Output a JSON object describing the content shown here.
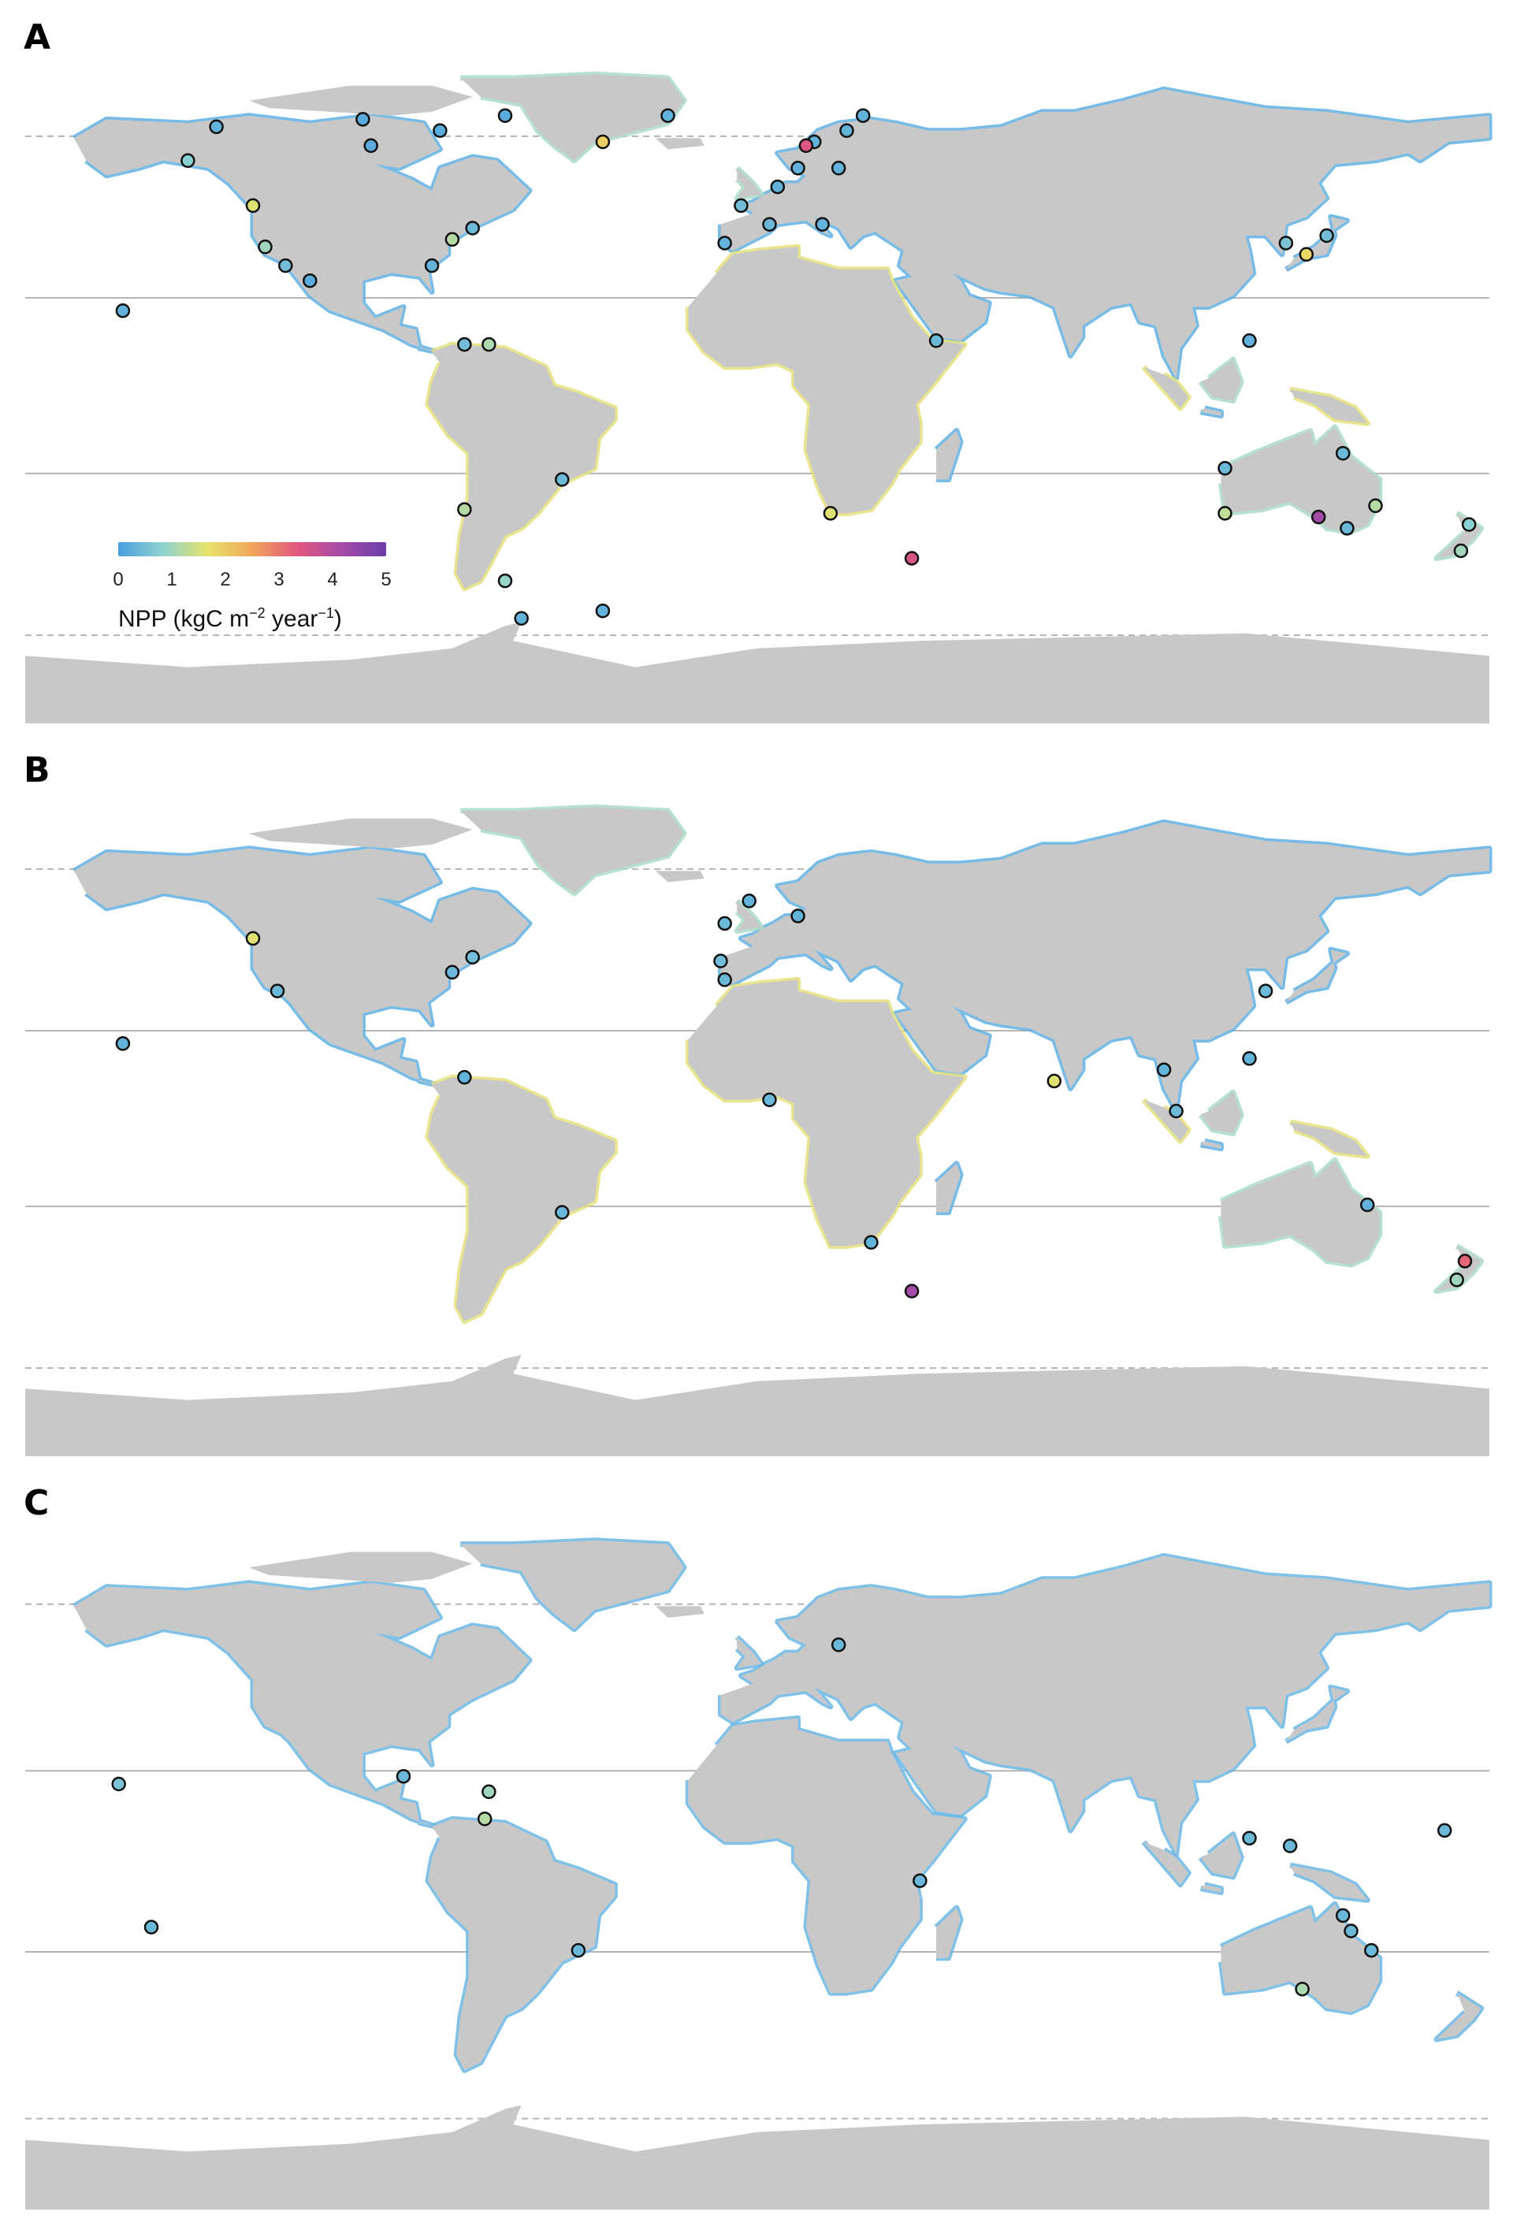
{
  "colors": {
    "land": "#c8c8c8",
    "ocean": "#ffffff",
    "gridline": "#b4b4b4",
    "point_stroke": "#111111",
    "npp_scale": [
      "#4a9fe0",
      "#8fd3d0",
      "#e6e36a",
      "#f1a65b",
      "#e2577e",
      "#a64aa8",
      "#6a3ea8"
    ]
  },
  "legend": {
    "ticks": [
      "0",
      "1",
      "2",
      "3",
      "4",
      "5"
    ],
    "label_prefix": "NPP (kgC m",
    "label_exp1": "−2",
    "label_mid": " year",
    "label_exp2": "−1",
    "label_suffix": ")",
    "range": [
      0,
      5
    ]
  },
  "panels": [
    {
      "letter": "A",
      "sites": [
        {
          "lon": -133,
          "lat": 69,
          "npp": 0.3
        },
        {
          "lon": -140,
          "lat": 60,
          "npp": 0.8
        },
        {
          "lon": -124,
          "lat": 48,
          "npp": 1.6
        },
        {
          "lon": -121,
          "lat": 37,
          "npp": 1.0
        },
        {
          "lon": -116,
          "lat": 32,
          "npp": 0.5
        },
        {
          "lon": -110,
          "lat": 28,
          "npp": 0.2
        },
        {
          "lon": -156,
          "lat": 20,
          "npp": 0.3
        },
        {
          "lon": -97,
          "lat": 71,
          "npp": 0.2
        },
        {
          "lon": -95,
          "lat": 64,
          "npp": 0.2
        },
        {
          "lon": -78,
          "lat": 68,
          "npp": 0.2
        },
        {
          "lon": -62,
          "lat": 72,
          "npp": 0.2
        },
        {
          "lon": -38,
          "lat": 65,
          "npp": 2.0
        },
        {
          "lon": -22,
          "lat": 72,
          "npp": 0.3
        },
        {
          "lon": -70,
          "lat": 42,
          "npp": 0.4
        },
        {
          "lon": -75,
          "lat": 39,
          "npp": 1.2
        },
        {
          "lon": -80,
          "lat": 32,
          "npp": 0.3
        },
        {
          "lon": -72,
          "lat": 11,
          "npp": 0.5
        },
        {
          "lon": -66,
          "lat": 11,
          "npp": 1.1
        },
        {
          "lon": -48,
          "lat": -25,
          "npp": 0.4
        },
        {
          "lon": -72,
          "lat": -33,
          "npp": 1.2
        },
        {
          "lon": -62,
          "lat": -52,
          "npp": 0.9
        },
        {
          "lon": -58,
          "lat": -62,
          "npp": 0.3
        },
        {
          "lon": -38,
          "lat": -60,
          "npp": 0.3
        },
        {
          "lon": 18,
          "lat": -34,
          "npp": 1.6
        },
        {
          "lon": 38,
          "lat": -46,
          "npp": 3.5
        },
        {
          "lon": 44,
          "lat": 12,
          "npp": 0.4
        },
        {
          "lon": 10,
          "lat": 58,
          "npp": 0.3
        },
        {
          "lon": 5,
          "lat": 53,
          "npp": 0.3
        },
        {
          "lon": -4,
          "lat": 48,
          "npp": 0.5
        },
        {
          "lon": 3,
          "lat": 43,
          "npp": 0.4
        },
        {
          "lon": -8,
          "lat": 38,
          "npp": 0.3
        },
        {
          "lon": 14,
          "lat": 65,
          "npp": 0.3
        },
        {
          "lon": 22,
          "lat": 68,
          "npp": 0.3
        },
        {
          "lon": 12,
          "lat": 64,
          "npp": 3.4
        },
        {
          "lon": 20,
          "lat": 58,
          "npp": 0.3
        },
        {
          "lon": 26,
          "lat": 72,
          "npp": 0.3
        },
        {
          "lon": 16,
          "lat": 43,
          "npp": 0.3
        },
        {
          "lon": 130,
          "lat": 38,
          "npp": 0.6
        },
        {
          "lon": 135,
          "lat": 35,
          "npp": 1.8
        },
        {
          "lon": 140,
          "lat": 40,
          "npp": 0.5
        },
        {
          "lon": 121,
          "lat": 12,
          "npp": 0.3
        },
        {
          "lon": 115,
          "lat": -22,
          "npp": 0.4
        },
        {
          "lon": 115,
          "lat": -34,
          "npp": 1.3
        },
        {
          "lon": 145,
          "lat": -38,
          "npp": 0.4
        },
        {
          "lon": 152,
          "lat": -32,
          "npp": 1.2
        },
        {
          "lon": 144,
          "lat": -18,
          "npp": 0.4
        },
        {
          "lon": 138,
          "lat": -35,
          "npp": 4.2
        },
        {
          "lon": 175,
          "lat": -37,
          "npp": 0.8
        },
        {
          "lon": 173,
          "lat": -44,
          "npp": 1.0
        }
      ]
    },
    {
      "letter": "B",
      "sites": [
        {
          "lon": -124,
          "lat": 48,
          "npp": 1.6
        },
        {
          "lon": -118,
          "lat": 34,
          "npp": 0.4
        },
        {
          "lon": -156,
          "lat": 20,
          "npp": 0.3
        },
        {
          "lon": -75,
          "lat": 39,
          "npp": 0.4
        },
        {
          "lon": -70,
          "lat": 43,
          "npp": 0.5
        },
        {
          "lon": -72,
          "lat": 11,
          "npp": 0.3
        },
        {
          "lon": -48,
          "lat": -25,
          "npp": 0.4
        },
        {
          "lon": -8,
          "lat": 52,
          "npp": 0.4
        },
        {
          "lon": -2,
          "lat": 58,
          "npp": 0.3
        },
        {
          "lon": -9,
          "lat": 42,
          "npp": 0.5
        },
        {
          "lon": -8,
          "lat": 37,
          "npp": 0.4
        },
        {
          "lon": 10,
          "lat": 54,
          "npp": 0.3
        },
        {
          "lon": 3,
          "lat": 5,
          "npp": 0.4
        },
        {
          "lon": 28,
          "lat": -33,
          "npp": 0.3
        },
        {
          "lon": 38,
          "lat": -46,
          "npp": 4.2
        },
        {
          "lon": 73,
          "lat": 10,
          "npp": 1.6
        },
        {
          "lon": 100,
          "lat": 13,
          "npp": 0.3
        },
        {
          "lon": 103,
          "lat": 2,
          "npp": 0.4
        },
        {
          "lon": 121,
          "lat": 16,
          "npp": 0.3
        },
        {
          "lon": 125,
          "lat": 34,
          "npp": 0.4
        },
        {
          "lon": 150,
          "lat": -23,
          "npp": 0.3
        },
        {
          "lon": 174,
          "lat": -38,
          "npp": 3.2
        },
        {
          "lon": 172,
          "lat": -43,
          "npp": 1.0
        }
      ]
    },
    {
      "letter": "C",
      "sites": [
        {
          "lon": 20,
          "lat": 56,
          "npp": 0.4
        },
        {
          "lon": -87,
          "lat": 22,
          "npp": 0.4
        },
        {
          "lon": -66,
          "lat": 18,
          "npp": 1.0
        },
        {
          "lon": -67,
          "lat": 11,
          "npp": 1.2
        },
        {
          "lon": -157,
          "lat": 20,
          "npp": 0.6
        },
        {
          "lon": -149,
          "lat": -17,
          "npp": 0.4
        },
        {
          "lon": -44,
          "lat": -23,
          "npp": 0.4
        },
        {
          "lon": 40,
          "lat": -5,
          "npp": 0.4
        },
        {
          "lon": 121,
          "lat": 6,
          "npp": 0.4
        },
        {
          "lon": 131,
          "lat": 4,
          "npp": 0.4
        },
        {
          "lon": 169,
          "lat": 8,
          "npp": 0.4
        },
        {
          "lon": 144,
          "lat": -14,
          "npp": 0.4
        },
        {
          "lon": 146,
          "lat": -18,
          "npp": 0.4
        },
        {
          "lon": 151,
          "lat": -23,
          "npp": 0.4
        },
        {
          "lon": 134,
          "lat": -33,
          "npp": 1.1
        }
      ]
    }
  ]
}
